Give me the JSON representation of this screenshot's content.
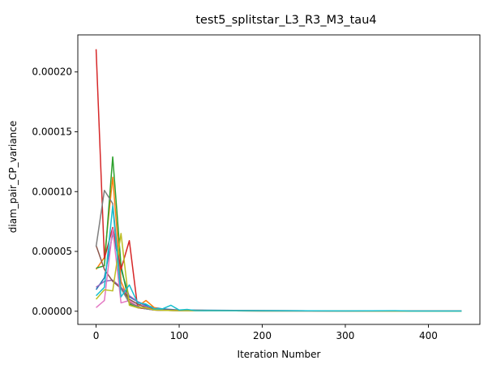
{
  "chart_data": {
    "type": "line",
    "title": "test5_splitstar_L3_R3_M3_tau4",
    "xlabel": "Iteration Number",
    "ylabel": "diam_pair_CP_variance",
    "xlim": [
      -22,
      462
    ],
    "ylim": [
      -1.1e-05,
      0.000231
    ],
    "xticks": [
      0,
      100,
      200,
      300,
      400
    ],
    "xtick_labels": [
      "0",
      "100",
      "200",
      "300",
      "400"
    ],
    "yticks": [
      0,
      5e-05,
      0.0001,
      0.00015,
      0.0002
    ],
    "ytick_labels": [
      "0.00000",
      "0.00005",
      "0.00010",
      "0.00015",
      "0.00020"
    ],
    "grid": false,
    "legend": "none",
    "series": [
      {
        "color": "#1f77b4",
        "x": [
          0,
          10,
          20,
          30,
          40,
          50,
          60,
          70,
          80,
          100,
          200,
          300,
          400,
          440
        ],
        "y": [
          1.8e-05,
          2.8e-05,
          6.5e-05,
          3.5e-05,
          1.2e-05,
          8e-06,
          5e-06,
          3e-06,
          2e-06,
          1e-06,
          5e-07,
          3e-07,
          2e-07,
          2e-07
        ]
      },
      {
        "color": "#ff7f0e",
        "x": [
          0,
          10,
          20,
          30,
          40,
          50,
          60,
          70,
          80,
          100,
          200,
          300,
          400,
          440
        ],
        "y": [
          3.5e-05,
          4.5e-05,
          0.000112,
          2.5e-05,
          8e-06,
          4e-06,
          9e-06,
          3e-06,
          1e-06,
          8e-07,
          4e-07,
          3e-07,
          2e-07,
          2e-07
        ]
      },
      {
        "color": "#2ca02c",
        "x": [
          0,
          10,
          20,
          30,
          40,
          50,
          60,
          70,
          80,
          100,
          200,
          300,
          400,
          440
        ],
        "y": [
          3.6e-05,
          3.8e-05,
          0.000129,
          3.8e-05,
          6e-06,
          3e-06,
          2e-06,
          1e-06,
          8e-07,
          5e-07,
          3e-07,
          2e-07,
          1e-07,
          1e-07
        ]
      },
      {
        "color": "#d62728",
        "x": [
          0,
          10,
          20,
          30,
          40,
          50,
          60,
          70,
          80,
          100,
          200,
          300,
          400,
          440
        ],
        "y": [
          0.000219,
          4.4e-05,
          7e-05,
          3.5e-05,
          5.9e-05,
          3e-06,
          2e-06,
          1e-06,
          8e-07,
          5e-07,
          3e-07,
          2e-07,
          1e-07,
          1e-07
        ]
      },
      {
        "color": "#9467bd",
        "x": [
          0,
          10,
          20,
          30,
          40,
          50,
          60,
          70,
          80,
          100,
          200,
          300,
          400,
          440
        ],
        "y": [
          2e-05,
          2.5e-05,
          2.6e-05,
          2e-05,
          1.3e-05,
          8e-06,
          4e-06,
          2e-06,
          1e-06,
          8e-07,
          4e-07,
          3e-07,
          2e-07,
          2e-07
        ]
      },
      {
        "color": "#8c564b",
        "x": [
          0,
          10,
          20,
          30,
          40,
          50,
          60,
          70,
          80,
          100,
          200,
          300,
          400,
          440
        ],
        "y": [
          5.5e-05,
          3.5e-05,
          2.5e-05,
          1.9e-05,
          1e-05,
          6e-06,
          3e-06,
          2e-06,
          1e-06,
          8e-07,
          4e-07,
          3e-07,
          2e-07,
          2e-07
        ]
      },
      {
        "color": "#e377c2",
        "x": [
          0,
          10,
          20,
          30,
          40,
          50,
          60,
          70,
          80,
          100,
          200,
          300,
          400,
          440
        ],
        "y": [
          3e-06,
          9e-06,
          6.9e-05,
          7e-06,
          9e-06,
          4e-06,
          2e-06,
          1e-06,
          8e-07,
          5e-07,
          3e-07,
          2e-07,
          1e-07,
          1e-07
        ]
      },
      {
        "color": "#7f7f7f",
        "x": [
          0,
          10,
          20,
          30,
          40,
          50,
          60,
          70,
          80,
          100,
          200,
          300,
          400,
          440
        ],
        "y": [
          5.4e-05,
          0.000101,
          9e-05,
          1.9e-05,
          7e-06,
          4e-06,
          2e-06,
          1e-06,
          8e-07,
          5e-07,
          3e-07,
          2e-07,
          1e-07,
          1e-07
        ]
      },
      {
        "color": "#bcbd22",
        "x": [
          0,
          10,
          20,
          30,
          40,
          50,
          60,
          70,
          80,
          100,
          200,
          300,
          400,
          440
        ],
        "y": [
          1e-05,
          1.8e-05,
          1.7e-05,
          6.5e-05,
          5e-06,
          3e-06,
          3e-06,
          1e-06,
          8e-07,
          5e-07,
          3e-07,
          2e-07,
          1e-07,
          1e-07
        ]
      },
      {
        "color": "#17becf",
        "x": [
          0,
          10,
          20,
          30,
          40,
          50,
          60,
          70,
          80,
          90,
          100,
          110,
          120,
          200,
          300,
          360,
          380,
          440
        ],
        "y": [
          1.3e-05,
          2e-05,
          8.8e-05,
          1.2e-05,
          2.2e-05,
          7e-06,
          6e-06,
          2e-06,
          2e-06,
          5e-06,
          1e-06,
          1.5e-06,
          5e-07,
          4e-07,
          3e-07,
          4e-07,
          2e-07,
          2e-07
        ]
      }
    ]
  }
}
